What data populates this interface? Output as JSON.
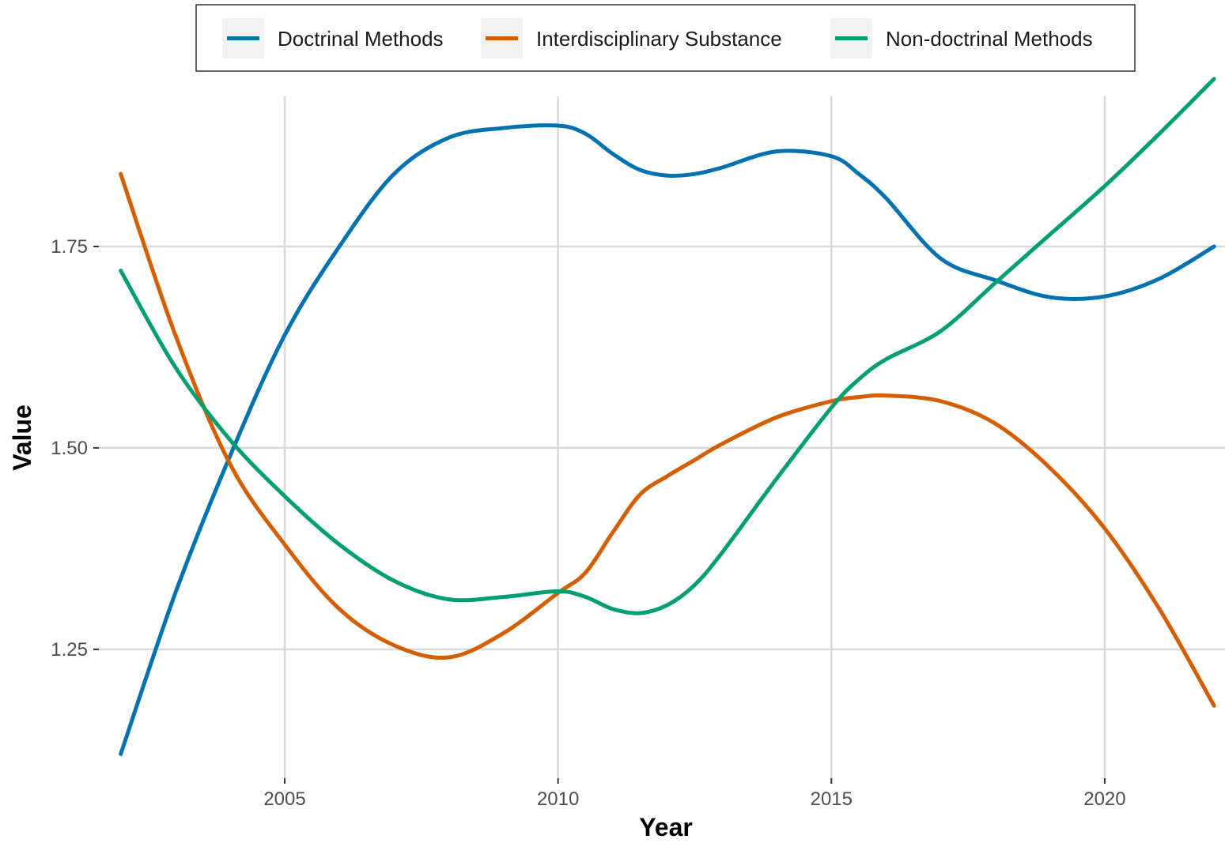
{
  "chart_data": {
    "type": "line",
    "xlabel": "Year",
    "ylabel": "Value",
    "xlim": [
      2001.6,
      2022.2
    ],
    "ylim": [
      1.09,
      1.95
    ],
    "x_ticks": [
      2005,
      2010,
      2015,
      2020
    ],
    "x_tick_labels": [
      "2005",
      "2010",
      "2015",
      "2020"
    ],
    "y_ticks": [
      1.25,
      1.5,
      1.75
    ],
    "y_tick_labels": [
      "1.25",
      "1.50",
      "1.75"
    ],
    "grid": true,
    "legend_position": "top",
    "x": [
      2002,
      2003,
      2004,
      2005,
      2006,
      2007,
      2008,
      2009,
      2010,
      2010.5,
      2011,
      2011.5,
      2012,
      2012.5,
      2013,
      2014,
      2015,
      2015.5,
      2016,
      2017,
      2018,
      2019,
      2020,
      2021,
      2022
    ],
    "series": [
      {
        "name": "Doctrinal Methods",
        "color": "#0072B2",
        "values": [
          1.12,
          1.32,
          1.49,
          1.64,
          1.75,
          1.84,
          1.885,
          1.897,
          1.9,
          1.89,
          1.865,
          1.845,
          1.838,
          1.84,
          1.848,
          1.868,
          1.862,
          1.84,
          1.81,
          1.735,
          1.708,
          1.687,
          1.688,
          1.71,
          1.75
        ]
      },
      {
        "name": "Interdisciplinary Substance",
        "color": "#D55E00",
        "values": [
          1.84,
          1.64,
          1.48,
          1.38,
          1.3,
          1.255,
          1.24,
          1.27,
          1.32,
          1.345,
          1.395,
          1.442,
          1.465,
          1.485,
          1.505,
          1.538,
          1.558,
          1.563,
          1.565,
          1.558,
          1.53,
          1.475,
          1.4,
          1.3,
          1.18
        ]
      },
      {
        "name": "Non-doctrinal Methods",
        "color": "#009E73",
        "values": [
          1.72,
          1.6,
          1.51,
          1.44,
          1.38,
          1.335,
          1.312,
          1.315,
          1.322,
          1.315,
          1.3,
          1.295,
          1.305,
          1.33,
          1.37,
          1.462,
          1.55,
          1.585,
          1.61,
          1.645,
          1.705,
          1.765,
          1.825,
          1.89,
          1.958
        ]
      }
    ]
  }
}
